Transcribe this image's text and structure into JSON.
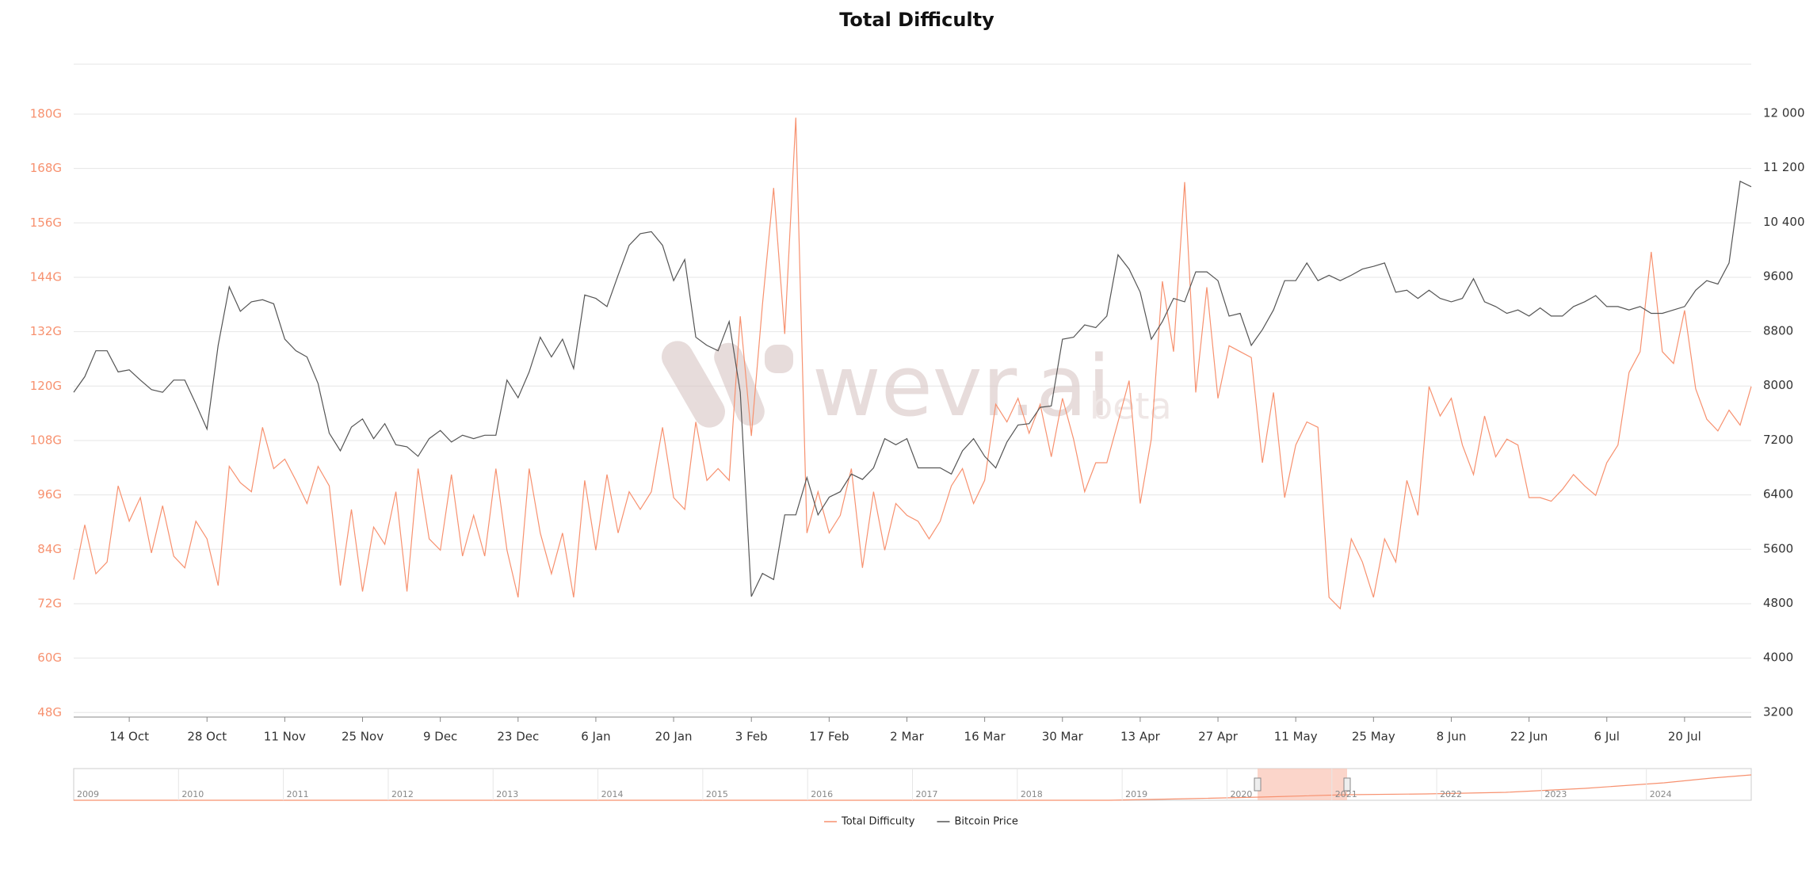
{
  "chart_data": {
    "type": "line",
    "title": "Total Difficulty",
    "watermark": {
      "text": "wevr.ai",
      "suffix": "beta"
    },
    "categories": [
      null,
      null,
      null,
      null,
      null,
      "14 Oct",
      null,
      null,
      null,
      null,
      null,
      null,
      "28 Oct",
      null,
      null,
      null,
      null,
      null,
      null,
      "11 Nov",
      null,
      null,
      null,
      null,
      null,
      null,
      "25 Nov",
      null,
      null,
      null,
      null,
      null,
      null,
      "9 Dec",
      null,
      null,
      null,
      null,
      null,
      null,
      "23 Dec",
      null,
      null,
      null,
      null,
      null,
      null,
      "6 Jan",
      null,
      null,
      null,
      null,
      null,
      null,
      "20 Jan",
      null,
      null,
      null,
      null,
      null,
      null,
      "3 Feb",
      null,
      null,
      null,
      null,
      null,
      null,
      "17 Feb",
      null,
      null,
      null,
      null,
      null,
      null,
      "2 Mar",
      null,
      null,
      null,
      null,
      null,
      null,
      "16 Mar",
      null,
      null,
      null,
      null,
      null,
      null,
      "30 Mar",
      null,
      null,
      null,
      null,
      null,
      null,
      "13 Apr",
      null,
      null,
      null,
      null,
      null,
      null,
      "27 Apr",
      null,
      null,
      null,
      null,
      null,
      null,
      "11 May",
      null,
      null,
      null,
      null,
      null,
      null,
      "25 May",
      null,
      null,
      null,
      null,
      null,
      null,
      "8 Jun",
      null,
      null,
      null,
      null,
      null,
      null,
      "22 Jun",
      null,
      null,
      null,
      null,
      null,
      null,
      "6 Jul",
      null,
      null,
      null,
      null,
      null,
      null,
      "20 Jul",
      null,
      null,
      null,
      null,
      null,
      null
    ],
    "series": [
      {
        "name": "Total Difficulty",
        "color": "#f7916f",
        "values": [
          77.3,
          89.4,
          78.6,
          81.2,
          98.0,
          90.2,
          95.4,
          83.2,
          93.6,
          82.5,
          79.9,
          90.2,
          86.3,
          76.0,
          102.3,
          98.7,
          96.7,
          110.9,
          101.8,
          103.9,
          99.2,
          94.1,
          102.3,
          98.0,
          76.0,
          92.8,
          74.7,
          88.9,
          85.1,
          96.7,
          74.7,
          101.8,
          86.3,
          83.8,
          100.5,
          82.5,
          91.5,
          82.5,
          101.8,
          83.8,
          73.4,
          101.8,
          87.6,
          78.6,
          87.6,
          73.4,
          99.2,
          83.8,
          100.5,
          87.6,
          96.7,
          92.8,
          96.7,
          110.9,
          95.4,
          92.8,
          112.1,
          99.2,
          101.8,
          99.2,
          135.4,
          109.0,
          138.0,
          163.7,
          131.5,
          179.2,
          87.6,
          96.7,
          87.6,
          91.5,
          101.8,
          79.9,
          96.7,
          83.8,
          94.1,
          91.5,
          90.2,
          86.3,
          90.2,
          98.0,
          101.8,
          94.1,
          99.2,
          116.0,
          112.1,
          117.3,
          109.6,
          116.0,
          104.4,
          117.3,
          108.3,
          96.7,
          103.1,
          103.1,
          112.1,
          121.2,
          94.1,
          108.3,
          143.1,
          127.6,
          165.0,
          118.6,
          141.8,
          117.3,
          128.9,
          127.6,
          126.3,
          103.1,
          118.6,
          95.4,
          107.0,
          112.1,
          110.9,
          73.4,
          70.9,
          86.3,
          81.2,
          73.4,
          86.3,
          81.2,
          99.2,
          91.5,
          119.9,
          113.4,
          117.3,
          107.0,
          100.5,
          113.4,
          104.4,
          108.3,
          107.0,
          95.4,
          95.4,
          94.6,
          97.2,
          100.5,
          98.0,
          95.9,
          103.1,
          107.0,
          123.0,
          127.6,
          149.6,
          127.6,
          125.0,
          136.7,
          119.4,
          112.7,
          110.1,
          114.7,
          111.4,
          119.9
        ]
      },
      {
        "name": "Bitcoin Price",
        "color": "#555555",
        "axis": "y2",
        "values": [
          7900,
          8130,
          8510,
          8510,
          8200,
          8230,
          8080,
          7940,
          7900,
          8080,
          8080,
          7730,
          7360,
          8590,
          9450,
          9090,
          9230,
          9260,
          9200,
          8680,
          8510,
          8420,
          8030,
          7300,
          7040,
          7390,
          7510,
          7220,
          7440,
          7130,
          7100,
          6960,
          7220,
          7340,
          7170,
          7270,
          7220,
          7270,
          7270,
          8080,
          7820,
          8200,
          8710,
          8420,
          8680,
          8250,
          9330,
          9280,
          9160,
          9620,
          10060,
          10230,
          10260,
          10060,
          9540,
          9850,
          8710,
          8590,
          8510,
          8940,
          7900,
          4900,
          5240,
          5150,
          6100,
          6100,
          6650,
          6100,
          6360,
          6440,
          6700,
          6620,
          6790,
          7220,
          7130,
          7220,
          6790,
          6790,
          6790,
          6700,
          7040,
          7220,
          6960,
          6790,
          7170,
          7420,
          7440,
          7680,
          7700,
          8680,
          8710,
          8890,
          8850,
          9020,
          9920,
          9710,
          9370,
          8680,
          8940,
          9280,
          9230,
          9670,
          9670,
          9540,
          9020,
          9060,
          8590,
          8820,
          9110,
          9540,
          9540,
          9800,
          9540,
          9620,
          9540,
          9620,
          9710,
          9750,
          9800,
          9370,
          9400,
          9280,
          9400,
          9280,
          9230,
          9280,
          9570,
          9230,
          9160,
          9060,
          9110,
          9020,
          9140,
          9020,
          9020,
          9160,
          9230,
          9320,
          9160,
          9160,
          9110,
          9160,
          9060,
          9060,
          9110,
          9160,
          9400,
          9540,
          9490,
          9800,
          11000,
          10920
        ]
      }
    ],
    "ylim": [
      47,
      191
    ],
    "yticks": [
      {
        "value": 48,
        "label": "48G"
      },
      {
        "value": 60,
        "label": "60G"
      },
      {
        "value": 72,
        "label": "72G"
      },
      {
        "value": 84,
        "label": "84G"
      },
      {
        "value": 96,
        "label": "96G"
      },
      {
        "value": 108,
        "label": "108G"
      },
      {
        "value": 120,
        "label": "120G"
      },
      {
        "value": 132,
        "label": "132G"
      },
      {
        "value": 144,
        "label": "144G"
      },
      {
        "value": 156,
        "label": "156G"
      },
      {
        "value": 168,
        "label": "168G"
      },
      {
        "value": 180,
        "label": "180G"
      }
    ],
    "y2lim": [
      3130,
      12720
    ],
    "y2ticks": [
      3200,
      {
        "value": 4000,
        "label": "4000"
      },
      {
        "value": 4800,
        "label": "4800"
      },
      {
        "value": 5600,
        "label": "5600"
      },
      {
        "value": 6400,
        "label": "6400"
      },
      {
        "value": 7200,
        "label": "7200"
      },
      {
        "value": 8000,
        "label": "8000"
      },
      {
        "value": 8800,
        "label": "8800"
      },
      {
        "value": 9600,
        "label": "9600"
      },
      {
        "value": 10400,
        "label": "10 400"
      },
      {
        "value": 11200,
        "label": "11 200"
      },
      {
        "value": 12000,
        "label": "12 000"
      }
    ],
    "grid": true,
    "legend": "bottom",
    "navigator": {
      "years": [
        "2009",
        "2010",
        "2011",
        "2012",
        "2013",
        "2014",
        "2015",
        "2016",
        "2017",
        "2018",
        "2019",
        "2020",
        "2021",
        "2022",
        "2023",
        "2024"
      ]
    }
  }
}
